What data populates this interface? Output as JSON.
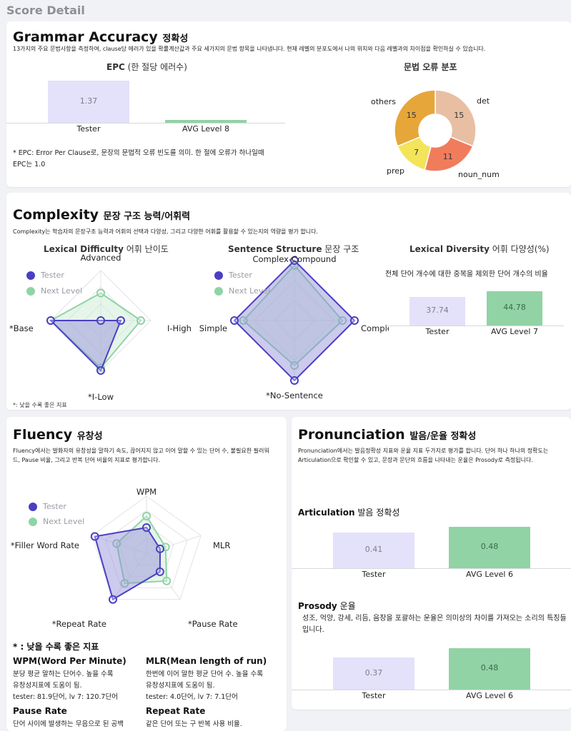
{
  "page_title": "Score Detail",
  "grammar": {
    "title": "Grammar Accuracy",
    "title_sub": "정확성",
    "desc": "13가지의 주요 문법사항을 측정하여, clause당 에러가 있을 확률계산값과 주요 세가지의 문법 항목을 나타냅니다. 현재 레벨의 분포도에서 나의 위치와 다음 레벨과의 차이점을 확인하실 수 있습니다.",
    "epc_title": "EPC",
    "epc_title_sub": "(한 절당 에러수)",
    "epc_note": "* EPC: Error Per Clause로, 문장의 문법적 오류 빈도를 의미. 한 절에 오류가 하나일때 EPC는 1.0",
    "dist_title": "문법 오류 분포"
  },
  "complexity": {
    "title": "Complexity",
    "title_sub": "문장 구조 능력/어휘력",
    "desc": "Complexity는 학습자의 문장구조 능력과 어휘의 선택과 다양성, 그리고 다양한 어휘를 활용할 수 있는지의 역량을 평가 합니다.",
    "lex_title": "Lexical Difficulty",
    "lex_title_sub": "어휘 난이도",
    "sent_title": "Sentence Structure",
    "sent_title_sub": "문장 구조",
    "div_title": "Lexical Diversity",
    "div_title_sub": "어휘 다양성(%)",
    "div_desc": "전체 단어 개수에 대한 중복을 제외한 단어 개수의 비율",
    "lower_better_note": "*: 낮을 수록 좋은 지표"
  },
  "fluency": {
    "title": "Fluency",
    "title_sub": "유창성",
    "desc": "Fluency에서는 발화자의 유창성을 말하기 속도, 끊어지지 않고 이어 말할 수 있는 단어 수, 불필요한 필러워드, Pause 비율, 그리고 반복 단어 비율의 지표로 평가합니다.",
    "lower_better_note": "* : 낮을 수록 좋은 지표",
    "wpm_h": "WPM(Word Per Minute)",
    "wpm_t1": "분당 평균 말하는 단어수. 높을 수록",
    "wpm_t2": "유창성지표에 도움이 됨.",
    "wpm_t3": "tester: 81.9단어, lv 7: 120.7단어",
    "mlr_h": "MLR(Mean length of run)",
    "mlr_t1": "한번에 이어 말한 평균 단어 수. 높을 수록",
    "mlr_t2": "유창성지표에 도움이 됨.",
    "mlr_t3": "tester: 4.0단어, lv 7: 7.1단어",
    "pause_h": "Pause Rate",
    "pause_t1": "단어 사이에 발생하는 무음으로 된 공백",
    "repeat_h": "Repeat Rate",
    "repeat_t1": "같은 단어 또는 구 반복 사용 비율."
  },
  "pronunciation": {
    "title": "Pronunciation",
    "title_sub": "발음/운율 정확성",
    "desc": "Pronunciation에서는 발음정확성 지표와 운율 지표 두가지로 평가를 합니다. 단어 하나 하나의 정확도는 Articulation으로 확인할 수 있고, 문장과 문단의 흐름을 나타내는 운율은 Prosody로 측정됩니다.",
    "art_title": "Articulation",
    "art_title_sub": "발음 정확성",
    "pros_title": "Prosody",
    "pros_title_sub": "운율",
    "pros_desc": "성조, 억양, 강세, 리듬, 음장을 포괄하는 운율은 의미상의 차이를 가져오는 소리의 특징들입니다."
  },
  "legend": {
    "tester": "Tester",
    "next": "Next Level"
  },
  "colors": {
    "tester": "#4a3fc4",
    "tester_fill": "#8f8ad6",
    "next": "#8fd4a6",
    "next_fill": "#cdebd6",
    "bar_tester": "#e4e1fa",
    "bar_next": "#91d3a5",
    "donut": [
      "#e8bfa2",
      "#f07c5c",
      "#f3e45a",
      "#e6a63a"
    ]
  },
  "chart_data": [
    {
      "id": "epc",
      "type": "bar",
      "categories": [
        "Tester",
        "AVG Level 8"
      ],
      "values": [
        1.37,
        0.1
      ],
      "value_labels": [
        "1.37",
        ""
      ]
    },
    {
      "id": "grammar_error_distribution",
      "type": "pie",
      "labels": [
        "det",
        "noun_num",
        "prep",
        "others"
      ],
      "values": [
        15,
        11,
        7,
        15
      ]
    },
    {
      "id": "lexical_difficulty",
      "type": "radar",
      "axes": [
        "Advanced",
        "I-High",
        "*I-Low",
        "*Base"
      ],
      "series": [
        {
          "name": "Tester",
          "values": [
            0.0,
            0.4,
            1.0,
            1.0
          ]
        },
        {
          "name": "Next Level",
          "values": [
            0.55,
            0.8,
            0.95,
            1.0
          ]
        }
      ]
    },
    {
      "id": "sentence_structure",
      "type": "radar",
      "axes": [
        "Complex-Compound",
        "Complex",
        "*No-Sentence",
        "Simple"
      ],
      "series": [
        {
          "name": "Tester",
          "values": [
            1.0,
            1.0,
            1.0,
            1.0
          ]
        },
        {
          "name": "Next Level",
          "values": [
            0.92,
            0.8,
            0.75,
            0.85
          ]
        }
      ]
    },
    {
      "id": "lexical_diversity",
      "type": "bar",
      "categories": [
        "Tester",
        "AVG Level 7"
      ],
      "values": [
        37.74,
        44.78
      ],
      "value_labels": [
        "37.74",
        "44.78"
      ]
    },
    {
      "id": "fluency",
      "type": "radar",
      "axes": [
        "WPM",
        "MLR",
        "*Pause Rate",
        "*Repeat Rate",
        "*Filler Word Rate"
      ],
      "series": [
        {
          "name": "Tester",
          "values": [
            0.45,
            0.25,
            0.4,
            1.0,
            0.95
          ]
        },
        {
          "name": "Next Level",
          "values": [
            0.65,
            0.35,
            0.6,
            0.65,
            0.55
          ]
        }
      ]
    },
    {
      "id": "articulation",
      "type": "bar",
      "categories": [
        "Tester",
        "AVG Level 6"
      ],
      "values": [
        0.41,
        0.48
      ],
      "value_labels": [
        "0.41",
        "0.48"
      ]
    },
    {
      "id": "prosody",
      "type": "bar",
      "categories": [
        "Tester",
        "AVG Level 6"
      ],
      "values": [
        0.37,
        0.48
      ],
      "value_labels": [
        "0.37",
        "0.48"
      ]
    }
  ]
}
